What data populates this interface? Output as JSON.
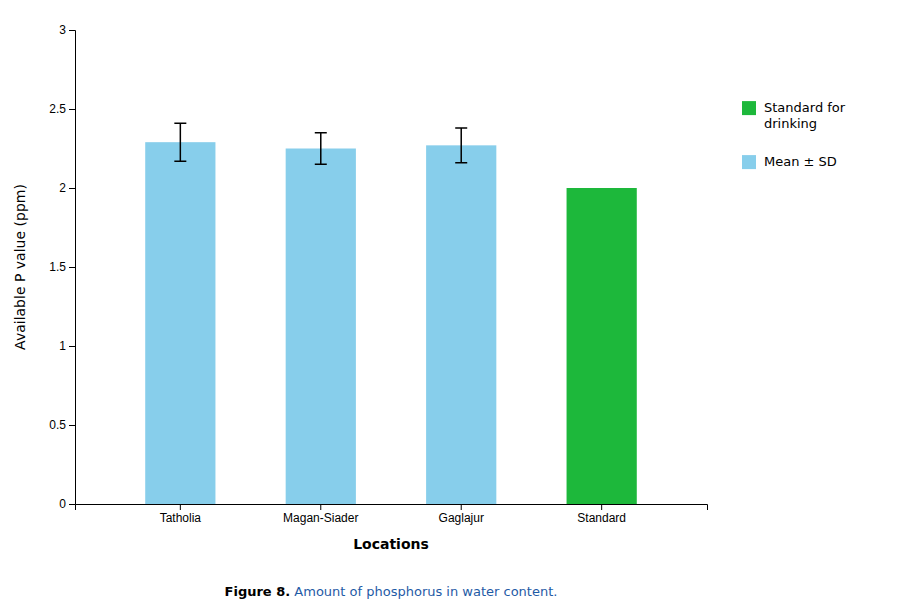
{
  "chart_data": {
    "type": "bar",
    "categories": [
      "Tatholia",
      "Magan-Siader",
      "Gaglajur",
      "Standard"
    ],
    "values": [
      2.29,
      2.25,
      2.27,
      2.0
    ],
    "errors": [
      0.12,
      0.1,
      0.11,
      null
    ],
    "colors": [
      "#87CEEB",
      "#87CEEB",
      "#87CEEB",
      "#1DB83B"
    ],
    "xlabel": "Locations",
    "ylabel": "Available P value (ppm)",
    "ylim": [
      0,
      3
    ],
    "yticks": [
      0,
      0.5,
      1,
      1.5,
      2,
      2.5,
      3
    ],
    "grid": false,
    "legend": "right",
    "legend_entries": [
      {
        "name": "Standard for\ndrinking",
        "color": "#1DB83B"
      },
      {
        "name": "Mean ± SD",
        "color": "#87CEEB"
      }
    ],
    "caption": [
      "Figure 8.",
      " Amount of phosphorus in water content."
    ],
    "caption_color": "#1F5BA6"
  }
}
